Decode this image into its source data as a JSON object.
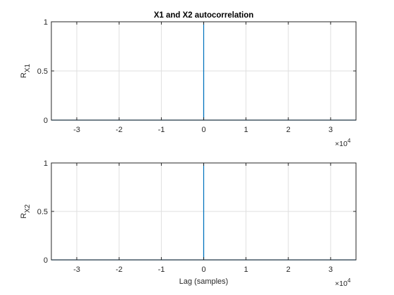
{
  "chart_data": [
    {
      "type": "line",
      "title": "X1 and X2 autocorrelation",
      "ylabel_main": "R",
      "ylabel_sub": "X1",
      "xlabel": "",
      "x_exponent_base": "×10",
      "x_exponent_power": "4",
      "xlim": [
        -3.6,
        3.6
      ],
      "ylim": [
        0,
        1
      ],
      "x_ticks": [
        -3,
        -2,
        -1,
        0,
        1,
        2,
        3
      ],
      "x_tick_labels": [
        "-3",
        "-2",
        "-1",
        "0",
        "1",
        "2",
        "3"
      ],
      "y_ticks": [
        0,
        0.5,
        1
      ],
      "y_tick_labels": [
        "0",
        "0.5",
        "1"
      ],
      "grid": true,
      "series": [
        {
          "x": [
            -3.6,
            -0.001,
            0,
            0.001,
            3.6
          ],
          "y": [
            0,
            0,
            1,
            0,
            0
          ]
        }
      ]
    },
    {
      "type": "line",
      "title": "",
      "ylabel_main": "R",
      "ylabel_sub": "X2",
      "xlabel": "Lag (samples)",
      "x_exponent_base": "×10",
      "x_exponent_power": "4",
      "xlim": [
        -3.6,
        3.6
      ],
      "ylim": [
        0,
        1
      ],
      "x_ticks": [
        -3,
        -2,
        -1,
        0,
        1,
        2,
        3
      ],
      "x_tick_labels": [
        "-3",
        "-2",
        "-1",
        "0",
        "1",
        "2",
        "3"
      ],
      "y_ticks": [
        0,
        0.5,
        1
      ],
      "y_tick_labels": [
        "0",
        "0.5",
        "1"
      ],
      "grid": true,
      "series": [
        {
          "x": [
            -3.6,
            -0.001,
            0,
            0.001,
            3.6
          ],
          "y": [
            0,
            0,
            1,
            0,
            0
          ]
        }
      ]
    }
  ],
  "colors": {
    "series": "#0072bd",
    "grid": "#dfdfdf",
    "axis": "#262626"
  }
}
